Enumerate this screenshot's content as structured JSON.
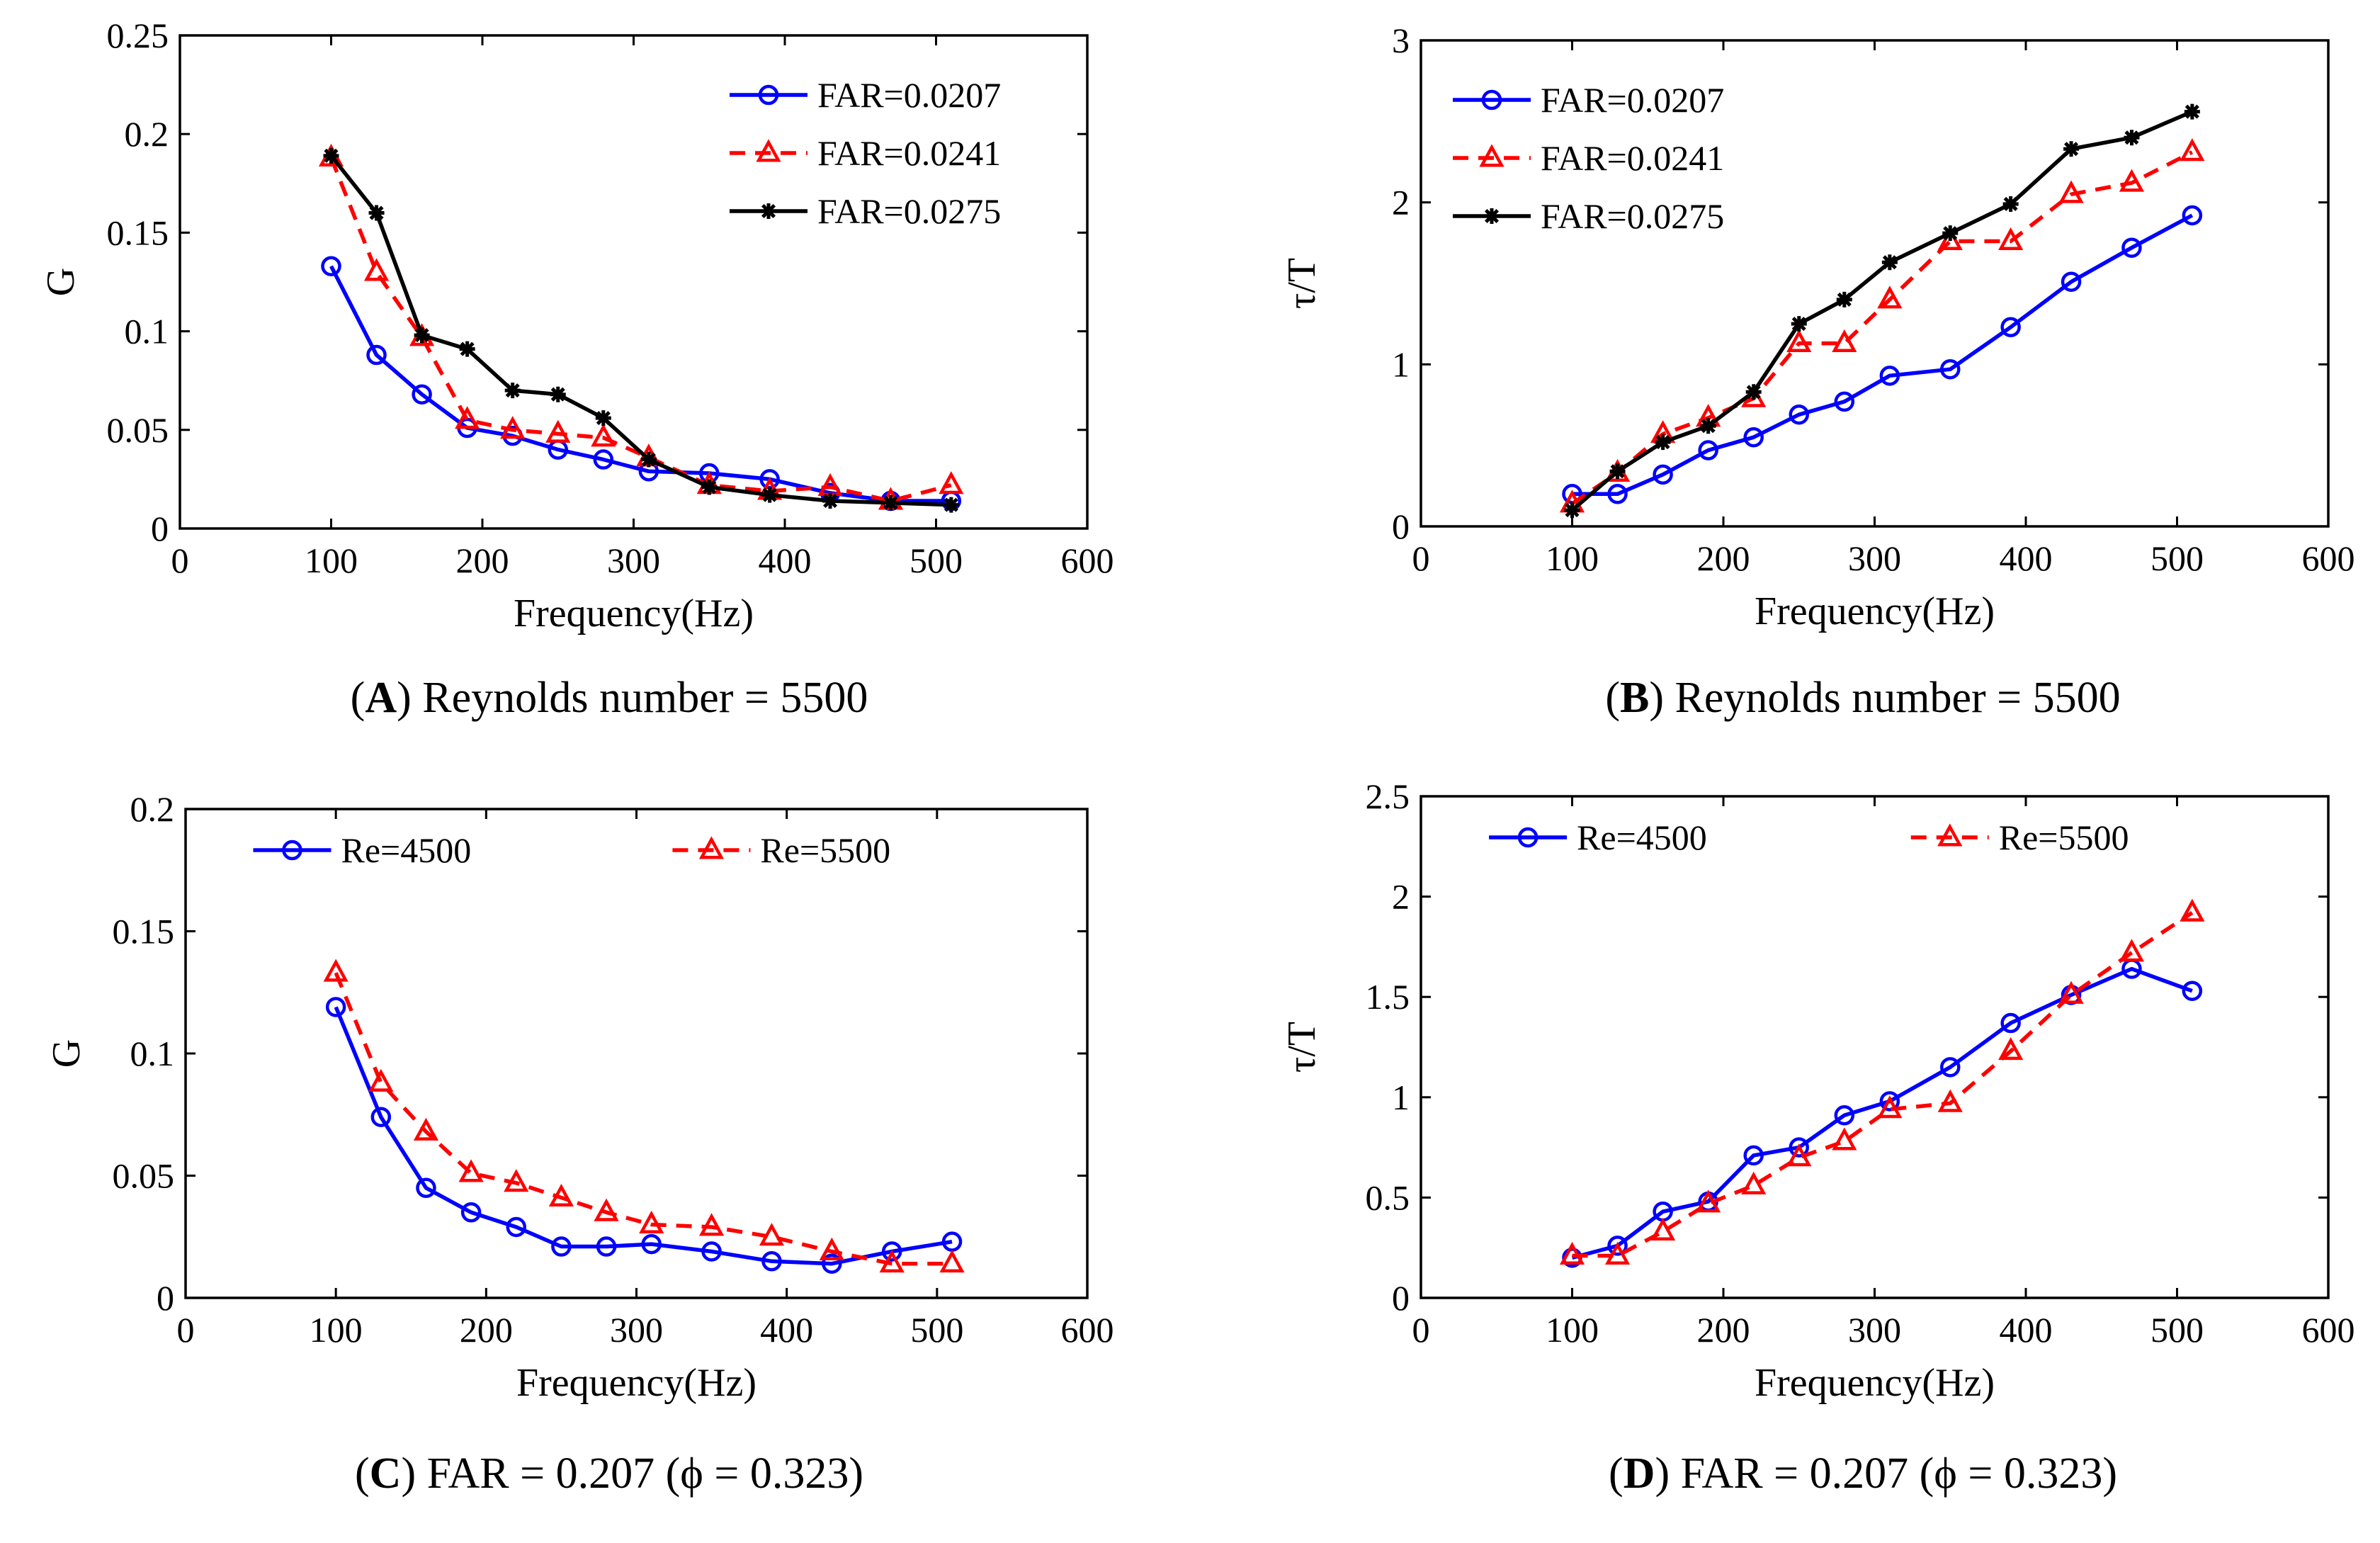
{
  "chart_data": [
    {
      "id": "A",
      "type": "line",
      "caption": {
        "letter": "A",
        "text": "Reynolds number = 5500"
      },
      "xlabel": "Frequency(Hz)",
      "ylabel": "G",
      "xlim": [
        0,
        600
      ],
      "ylim": [
        0,
        0.25
      ],
      "xticks": [
        0,
        100,
        200,
        300,
        400,
        500,
        600
      ],
      "xtick_labels": [
        "0",
        "100",
        "200",
        "300",
        "400",
        "500",
        "600"
      ],
      "yticks": [
        0,
        0.05,
        0.1,
        0.15,
        0.2,
        0.25
      ],
      "ytick_labels": [
        "0",
        "0.05",
        "0.1",
        "0.15",
        "0.2",
        "0.25"
      ],
      "legend_position": "top-right",
      "legend_layout": "vertical",
      "series": [
        {
          "name": "FAR=0.0207",
          "color": "#0000ff",
          "marker": "circle",
          "dash": "solid",
          "x": [
            100,
            130,
            160,
            190,
            220,
            250,
            280,
            310,
            350,
            390,
            430,
            470,
            510
          ],
          "y": [
            0.133,
            0.088,
            0.068,
            0.051,
            0.047,
            0.04,
            0.035,
            0.029,
            0.028,
            0.025,
            0.018,
            0.014,
            0.014
          ]
        },
        {
          "name": "FAR=0.0241",
          "color": "#ff0000",
          "marker": "triangle",
          "dash": "dashed",
          "x": [
            100,
            130,
            160,
            190,
            220,
            250,
            280,
            310,
            350,
            390,
            430,
            470,
            510
          ],
          "y": [
            0.188,
            0.13,
            0.097,
            0.055,
            0.05,
            0.048,
            0.046,
            0.036,
            0.022,
            0.019,
            0.021,
            0.014,
            0.022
          ]
        },
        {
          "name": "FAR=0.0275",
          "color": "#000000",
          "marker": "star",
          "dash": "solid",
          "x": [
            100,
            130,
            160,
            190,
            220,
            250,
            280,
            310,
            350,
            390,
            430,
            470,
            510
          ],
          "y": [
            0.189,
            0.16,
            0.098,
            0.091,
            0.07,
            0.068,
            0.056,
            0.035,
            0.021,
            0.017,
            0.014,
            0.013,
            0.012
          ]
        }
      ]
    },
    {
      "id": "B",
      "type": "line",
      "caption": {
        "letter": "B",
        "text": "Reynolds number = 5500"
      },
      "xlabel": "Frequency(Hz)",
      "ylabel": "τ/T",
      "xlim": [
        0,
        600
      ],
      "ylim": [
        0,
        3
      ],
      "xticks": [
        0,
        100,
        200,
        300,
        400,
        500,
        600
      ],
      "xtick_labels": [
        "0",
        "100",
        "200",
        "300",
        "400",
        "500",
        "600"
      ],
      "yticks": [
        0,
        1,
        2,
        3
      ],
      "ytick_labels": [
        "0",
        "1",
        "2",
        "3"
      ],
      "legend_position": "top-left",
      "legend_layout": "vertical",
      "series": [
        {
          "name": "FAR=0.0207",
          "color": "#0000ff",
          "marker": "circle",
          "dash": "solid",
          "x": [
            100,
            130,
            160,
            190,
            220,
            250,
            280,
            310,
            350,
            390,
            430,
            470,
            510
          ],
          "y": [
            0.2,
            0.2,
            0.32,
            0.47,
            0.55,
            0.69,
            0.77,
            0.93,
            0.97,
            1.23,
            1.51,
            1.72,
            1.92
          ]
        },
        {
          "name": "FAR=0.0241",
          "color": "#ff0000",
          "marker": "triangle",
          "dash": "dashed",
          "x": [
            100,
            130,
            160,
            190,
            220,
            250,
            280,
            310,
            350,
            390,
            430,
            470,
            510
          ],
          "y": [
            0.14,
            0.33,
            0.57,
            0.67,
            0.79,
            1.13,
            1.13,
            1.4,
            1.76,
            1.76,
            2.05,
            2.12,
            2.31
          ]
        },
        {
          "name": "FAR=0.0275",
          "color": "#000000",
          "marker": "star",
          "dash": "solid",
          "x": [
            100,
            130,
            160,
            190,
            220,
            250,
            280,
            310,
            350,
            390,
            430,
            470,
            510
          ],
          "y": [
            0.1,
            0.34,
            0.52,
            0.62,
            0.83,
            1.25,
            1.4,
            1.63,
            1.81,
            1.99,
            2.33,
            2.4,
            2.56
          ]
        }
      ]
    },
    {
      "id": "C",
      "type": "line",
      "caption": {
        "letter": "C",
        "text": "FAR = 0.207 (ϕ = 0.323)"
      },
      "xlabel": "Frequency(Hz)",
      "ylabel": "G",
      "xlim": [
        0,
        600
      ],
      "ylim": [
        0,
        0.2
      ],
      "xticks": [
        0,
        100,
        200,
        300,
        400,
        500,
        600
      ],
      "xtick_labels": [
        "0",
        "100",
        "200",
        "300",
        "400",
        "500",
        "600"
      ],
      "yticks": [
        0,
        0.05,
        0.1,
        0.15,
        0.2
      ],
      "ytick_labels": [
        "0",
        "0.05",
        "0.1",
        "0.15",
        "0.2"
      ],
      "legend_position": "top",
      "legend_layout": "horizontal",
      "series": [
        {
          "name": "Re=4500",
          "color": "#0000ff",
          "marker": "circle",
          "dash": "solid",
          "x": [
            100,
            130,
            160,
            190,
            220,
            250,
            280,
            310,
            350,
            390,
            430,
            470,
            510
          ],
          "y": [
            0.119,
            0.074,
            0.045,
            0.035,
            0.029,
            0.021,
            0.021,
            0.022,
            0.019,
            0.015,
            0.014,
            0.019,
            0.023
          ]
        },
        {
          "name": "Re=5500",
          "color": "#ff0000",
          "marker": "triangle",
          "dash": "dashed",
          "x": [
            100,
            130,
            160,
            190,
            220,
            250,
            280,
            310,
            350,
            390,
            430,
            470,
            510
          ],
          "y": [
            0.133,
            0.088,
            0.068,
            0.051,
            0.047,
            0.041,
            0.035,
            0.03,
            0.029,
            0.025,
            0.019,
            0.014,
            0.014
          ]
        }
      ]
    },
    {
      "id": "D",
      "type": "line",
      "caption": {
        "letter": "D",
        "text": "FAR = 0.207 (ϕ = 0.323)"
      },
      "xlabel": "Frequency(Hz)",
      "ylabel": "τ/T",
      "xlim": [
        0,
        600
      ],
      "ylim": [
        0,
        2.5
      ],
      "xticks": [
        0,
        100,
        200,
        300,
        400,
        500,
        600
      ],
      "xtick_labels": [
        "0",
        "100",
        "200",
        "300",
        "400",
        "500",
        "600"
      ],
      "yticks": [
        0,
        0.5,
        1,
        1.5,
        2,
        2.5
      ],
      "ytick_labels": [
        "0",
        "0.5",
        "1",
        "1.5",
        "2",
        "2.5"
      ],
      "legend_position": "top",
      "legend_layout": "horizontal",
      "series": [
        {
          "name": "Re=4500",
          "color": "#0000ff",
          "marker": "circle",
          "dash": "solid",
          "x": [
            100,
            130,
            160,
            190,
            220,
            250,
            280,
            310,
            350,
            390,
            430,
            470,
            510
          ],
          "y": [
            0.2,
            0.26,
            0.43,
            0.48,
            0.71,
            0.75,
            0.91,
            0.98,
            1.15,
            1.37,
            1.51,
            1.64,
            1.53
          ]
        },
        {
          "name": "Re=5500",
          "color": "#ff0000",
          "marker": "triangle",
          "dash": "dashed",
          "x": [
            100,
            130,
            160,
            190,
            220,
            250,
            280,
            310,
            350,
            390,
            430,
            470,
            510
          ],
          "y": [
            0.21,
            0.21,
            0.33,
            0.47,
            0.56,
            0.7,
            0.78,
            0.94,
            0.97,
            1.23,
            1.51,
            1.72,
            1.92
          ]
        }
      ]
    }
  ]
}
